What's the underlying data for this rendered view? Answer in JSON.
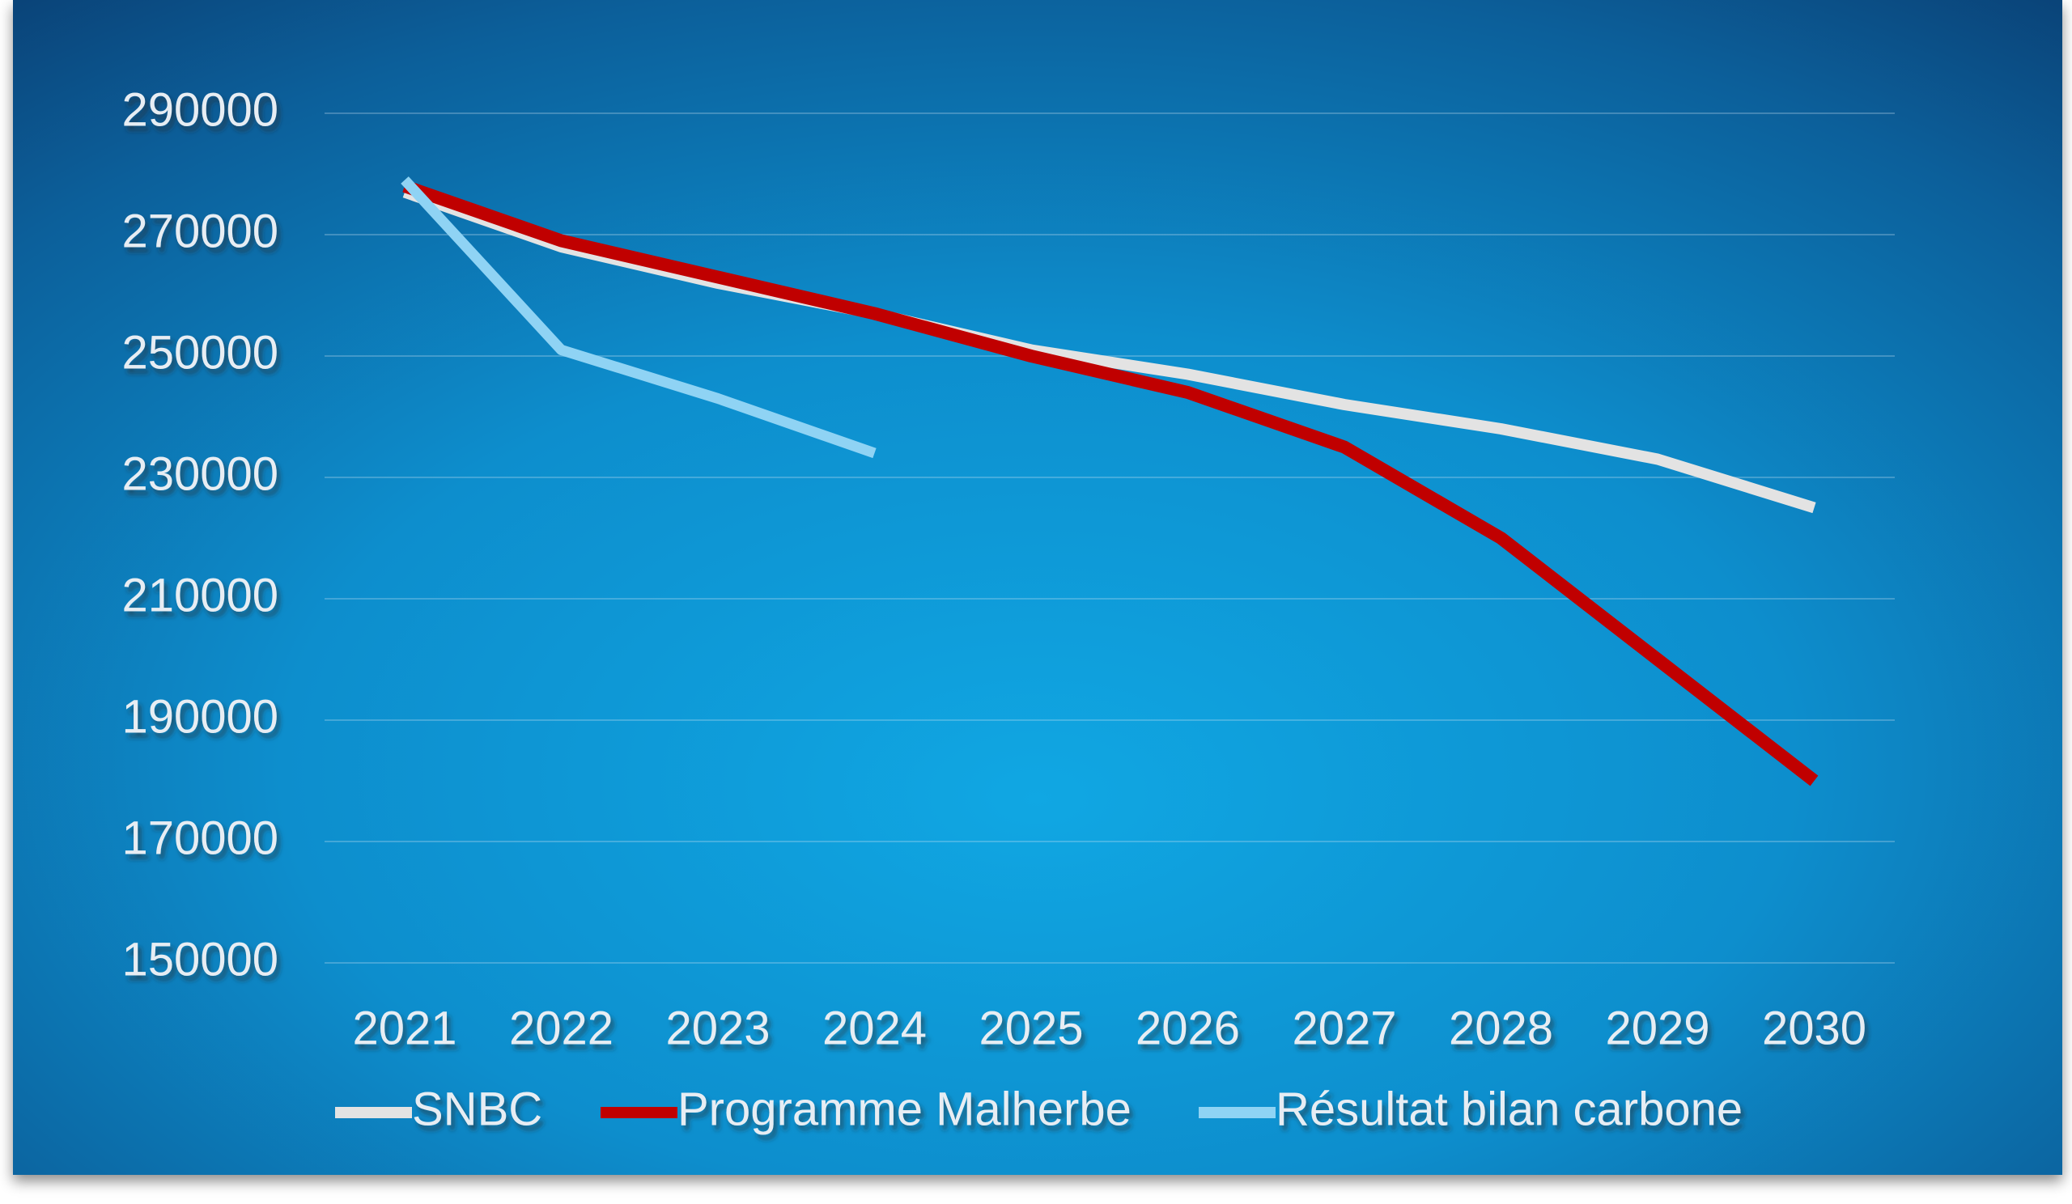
{
  "chart_data": {
    "type": "line",
    "title": "",
    "xlabel": "",
    "ylabel": "",
    "x": [
      2021,
      2022,
      2023,
      2024,
      2025,
      2026,
      2027,
      2028,
      2029,
      2030
    ],
    "y_ticks": [
      150000,
      170000,
      190000,
      210000,
      230000,
      250000,
      270000,
      290000
    ],
    "ylim": [
      150000,
      290000
    ],
    "grid": true,
    "legend_position": "bottom",
    "series": [
      {
        "name": "SNBC",
        "color": "#e3e3e3",
        "values": [
          277000,
          268000,
          262000,
          257000,
          251000,
          247000,
          242000,
          238000,
          233000,
          225000
        ]
      },
      {
        "name": "Programme Malherbe",
        "color": "#c00000",
        "values": [
          278000,
          269000,
          263000,
          257000,
          250000,
          244000,
          235000,
          220000,
          200000,
          180000
        ]
      },
      {
        "name": "Résultat bilan carbone",
        "color": "#8fd3f4",
        "values": [
          279000,
          251000,
          243000,
          234000,
          null,
          null,
          null,
          null,
          null,
          null
        ]
      }
    ]
  }
}
